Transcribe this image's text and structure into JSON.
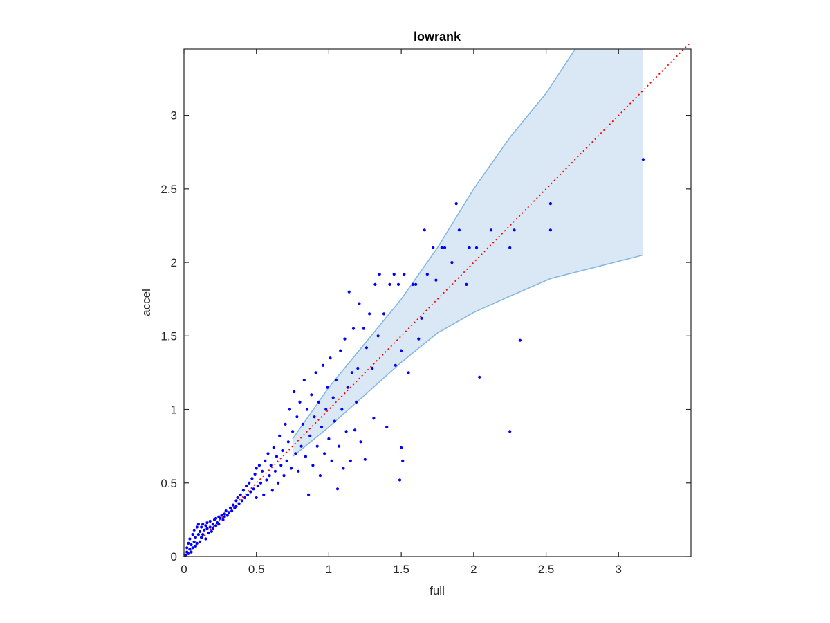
{
  "chart_data": {
    "type": "scatter",
    "title": "lowrank",
    "xlabel": "full",
    "ylabel": "accel",
    "xlim": [
      0,
      3.5
    ],
    "ylim": [
      0,
      3.45
    ],
    "xticks": [
      0,
      0.5,
      1,
      1.5,
      2,
      2.5,
      3
    ],
    "yticks": [
      0,
      0.5,
      1,
      1.5,
      2,
      2.5,
      3
    ],
    "grid": false,
    "box": true,
    "colors": {
      "points": "#0000ff",
      "band_fill": "#d9e8f4",
      "band_edge": "#84b8e0",
      "reference_line": "#ff0000",
      "axes": "#262626"
    },
    "reference_line": {
      "from": [
        0,
        0
      ],
      "to": [
        3.5,
        3.5
      ],
      "style": "dotted"
    },
    "band": {
      "upper": [
        [
          0.75,
          0.8
        ],
        [
          1.0,
          1.15
        ],
        [
          1.25,
          1.45
        ],
        [
          1.5,
          1.75
        ],
        [
          1.75,
          2.1
        ],
        [
          2.0,
          2.5
        ],
        [
          2.25,
          2.85
        ],
        [
          2.5,
          3.15
        ],
        [
          2.7,
          3.45
        ],
        [
          3.17,
          3.45
        ]
      ],
      "lower": [
        [
          0.75,
          0.68
        ],
        [
          1.0,
          0.88
        ],
        [
          1.25,
          1.1
        ],
        [
          1.5,
          1.32
        ],
        [
          1.75,
          1.52
        ],
        [
          2.0,
          1.66
        ],
        [
          2.25,
          1.77
        ],
        [
          2.53,
          1.89
        ],
        [
          3.17,
          2.05
        ]
      ],
      "x_end": 3.17
    },
    "series": [
      {
        "points": [
          [
            0.01,
            0.01
          ],
          [
            0.02,
            0.03
          ],
          [
            0.02,
            0.06
          ],
          [
            0.03,
            0.02
          ],
          [
            0.03,
            0.09
          ],
          [
            0.04,
            0.05
          ],
          [
            0.04,
            0.12
          ],
          [
            0.05,
            0.03
          ],
          [
            0.05,
            0.08
          ],
          [
            0.06,
            0.15
          ],
          [
            0.06,
            0.06
          ],
          [
            0.07,
            0.1
          ],
          [
            0.07,
            0.18
          ],
          [
            0.08,
            0.07
          ],
          [
            0.08,
            0.13
          ],
          [
            0.09,
            0.2
          ],
          [
            0.09,
            0.09
          ],
          [
            0.1,
            0.15
          ],
          [
            0.1,
            0.22
          ],
          [
            0.11,
            0.1
          ],
          [
            0.11,
            0.17
          ],
          [
            0.12,
            0.2
          ],
          [
            0.12,
            0.13
          ],
          [
            0.13,
            0.22
          ],
          [
            0.13,
            0.15
          ],
          [
            0.14,
            0.18
          ],
          [
            0.15,
            0.21
          ],
          [
            0.15,
            0.12
          ],
          [
            0.16,
            0.19
          ],
          [
            0.16,
            0.23
          ],
          [
            0.17,
            0.16
          ],
          [
            0.18,
            0.2
          ],
          [
            0.18,
            0.24
          ],
          [
            0.19,
            0.17
          ],
          [
            0.2,
            0.22
          ],
          [
            0.2,
            0.19
          ],
          [
            0.21,
            0.25
          ],
          [
            0.22,
            0.21
          ],
          [
            0.22,
            0.26
          ],
          [
            0.23,
            0.23
          ],
          [
            0.24,
            0.27
          ],
          [
            0.24,
            0.22
          ],
          [
            0.25,
            0.26
          ],
          [
            0.26,
            0.28
          ],
          [
            0.27,
            0.25
          ],
          [
            0.28,
            0.29
          ],
          [
            0.28,
            0.27
          ],
          [
            0.29,
            0.31
          ],
          [
            0.3,
            0.28
          ],
          [
            0.31,
            0.3
          ],
          [
            0.32,
            0.33
          ],
          [
            0.33,
            0.31
          ],
          [
            0.34,
            0.35
          ],
          [
            0.35,
            0.33
          ],
          [
            0.36,
            0.38
          ],
          [
            0.36,
            0.34
          ],
          [
            0.37,
            0.4
          ],
          [
            0.38,
            0.36
          ],
          [
            0.39,
            0.42
          ],
          [
            0.4,
            0.38
          ],
          [
            0.41,
            0.45
          ],
          [
            0.42,
            0.4
          ],
          [
            0.43,
            0.48
          ],
          [
            0.44,
            0.42
          ],
          [
            0.45,
            0.5
          ],
          [
            0.46,
            0.44
          ],
          [
            0.47,
            0.53
          ],
          [
            0.48,
            0.46
          ],
          [
            0.49,
            0.56
          ],
          [
            0.5,
            0.4
          ],
          [
            0.5,
            0.6
          ],
          [
            0.51,
            0.48
          ],
          [
            0.52,
            0.62
          ],
          [
            0.53,
            0.5
          ],
          [
            0.54,
            0.58
          ],
          [
            0.55,
            0.42
          ],
          [
            0.56,
            0.65
          ],
          [
            0.57,
            0.52
          ],
          [
            0.58,
            0.7
          ],
          [
            0.59,
            0.55
          ],
          [
            0.6,
            0.62
          ],
          [
            0.61,
            0.45
          ],
          [
            0.62,
            0.74
          ],
          [
            0.63,
            0.58
          ],
          [
            0.64,
            0.68
          ],
          [
            0.65,
            0.5
          ],
          [
            0.66,
            0.82
          ],
          [
            0.67,
            0.62
          ],
          [
            0.68,
            0.72
          ],
          [
            0.69,
            0.55
          ],
          [
            0.7,
            0.9
          ],
          [
            0.71,
            0.65
          ],
          [
            0.72,
            0.78
          ],
          [
            0.73,
            1.0
          ],
          [
            0.74,
            0.6
          ],
          [
            0.75,
            0.85
          ],
          [
            0.76,
            1.12
          ],
          [
            0.77,
            0.7
          ],
          [
            0.78,
            0.95
          ],
          [
            0.79,
            0.58
          ],
          [
            0.8,
            1.05
          ],
          [
            0.81,
            0.75
          ],
          [
            0.82,
            0.9
          ],
          [
            0.83,
            1.2
          ],
          [
            0.84,
            0.68
          ],
          [
            0.85,
            1.0
          ],
          [
            0.86,
            0.42
          ],
          [
            0.87,
            0.82
          ],
          [
            0.88,
            1.1
          ],
          [
            0.89,
            0.62
          ],
          [
            0.9,
            0.95
          ],
          [
            0.91,
            1.25
          ],
          [
            0.92,
            0.75
          ],
          [
            0.93,
            1.05
          ],
          [
            0.94,
            0.55
          ],
          [
            0.95,
            0.88
          ],
          [
            0.96,
            1.3
          ],
          [
            0.97,
            0.7
          ],
          [
            0.98,
            1.0
          ],
          [
            0.99,
            1.15
          ],
          [
            1.0,
            0.8
          ],
          [
            1.01,
            1.35
          ],
          [
            1.02,
            0.65
          ],
          [
            1.03,
            1.08
          ],
          [
            1.04,
            0.92
          ],
          [
            1.05,
            1.2
          ],
          [
            1.06,
            0.46
          ],
          [
            1.07,
            0.75
          ],
          [
            1.08,
            1.4
          ],
          [
            1.09,
            1.0
          ],
          [
            1.1,
            0.6
          ],
          [
            1.11,
            1.48
          ],
          [
            1.12,
            0.85
          ],
          [
            1.13,
            1.15
          ],
          [
            1.14,
            1.8
          ],
          [
            1.15,
            0.65
          ],
          [
            1.16,
            1.25
          ],
          [
            1.17,
            1.55
          ],
          [
            1.18,
            0.86
          ],
          [
            1.19,
            1.05
          ],
          [
            1.2,
            1.28
          ],
          [
            1.21,
            1.72
          ],
          [
            1.22,
            0.78
          ],
          [
            1.24,
            1.55
          ],
          [
            1.25,
            0.66
          ],
          [
            1.26,
            1.42
          ],
          [
            1.28,
            1.65
          ],
          [
            1.3,
            1.28
          ],
          [
            1.31,
            0.94
          ],
          [
            1.32,
            1.85
          ],
          [
            1.34,
            1.5
          ],
          [
            1.35,
            1.92
          ],
          [
            1.38,
            1.65
          ],
          [
            1.4,
            0.88
          ],
          [
            1.42,
            1.85
          ],
          [
            1.45,
            1.92
          ],
          [
            1.46,
            1.3
          ],
          [
            1.48,
            1.85
          ],
          [
            1.49,
            0.52
          ],
          [
            1.5,
            0.74
          ],
          [
            1.5,
            1.4
          ],
          [
            1.51,
            0.65
          ],
          [
            1.52,
            1.92
          ],
          [
            1.55,
            1.25
          ],
          [
            1.58,
            1.85
          ],
          [
            1.6,
            1.85
          ],
          [
            1.62,
            1.48
          ],
          [
            1.64,
            1.62
          ],
          [
            1.66,
            2.22
          ],
          [
            1.68,
            1.92
          ],
          [
            1.72,
            2.1
          ],
          [
            1.74,
            1.88
          ],
          [
            1.78,
            2.1
          ],
          [
            1.8,
            2.1
          ],
          [
            1.85,
            2.0
          ],
          [
            1.88,
            2.4
          ],
          [
            1.9,
            2.22
          ],
          [
            1.95,
            1.85
          ],
          [
            1.97,
            2.1
          ],
          [
            2.02,
            2.1
          ],
          [
            2.04,
            1.22
          ],
          [
            2.12,
            2.22
          ],
          [
            2.25,
            2.1
          ],
          [
            2.25,
            0.85
          ],
          [
            2.28,
            2.22
          ],
          [
            2.32,
            1.47
          ],
          [
            2.53,
            2.22
          ],
          [
            2.53,
            2.4
          ],
          [
            3.17,
            2.7
          ]
        ]
      }
    ]
  }
}
